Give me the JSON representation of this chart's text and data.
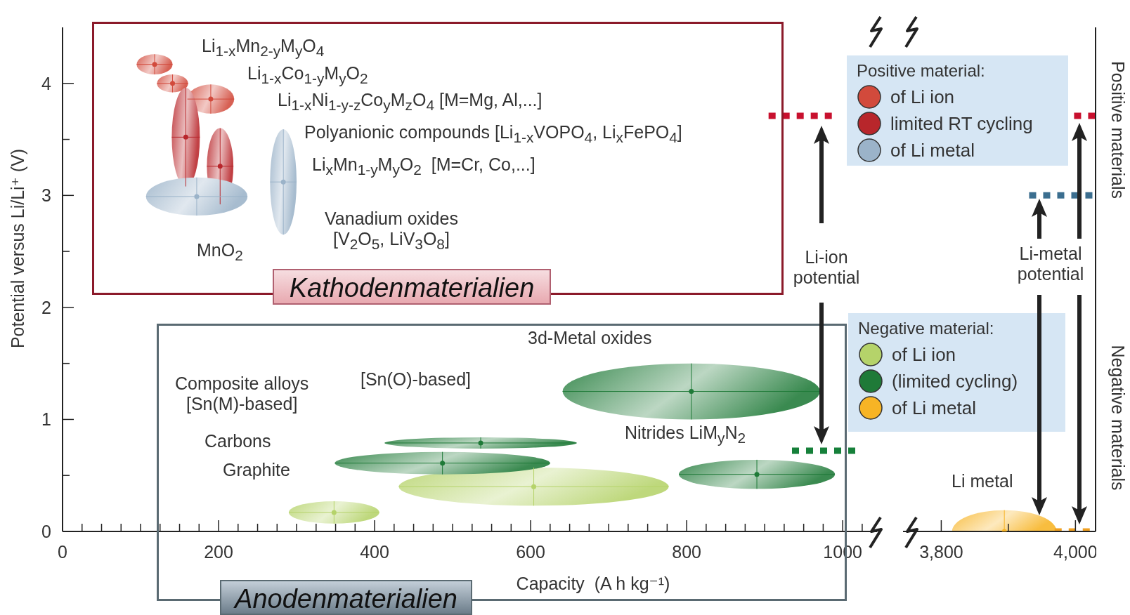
{
  "chart_data": [
    {
      "type": "scatter",
      "xlabel": "Capacity  (A h kg⁻¹)",
      "ylabel": "Potential versus Li/Li⁺ (V)",
      "xlim": [
        0,
        1044
      ],
      "ylim": [
        0,
        4.5
      ],
      "xticks": [
        0,
        {
          "value": 25,
          "label": null
        },
        {
          "value": 50,
          "label": null
        },
        {
          "value": 75,
          "label": null
        },
        {
          "value": 100,
          "label": null
        },
        {
          "value": 125,
          "label": null
        },
        {
          "value": 150,
          "label": null
        },
        {
          "value": 175,
          "label": null
        },
        200,
        {
          "value": 225,
          "label": null
        },
        {
          "value": 250,
          "label": null
        },
        {
          "value": 275,
          "label": null
        },
        {
          "value": 300,
          "label": null
        },
        {
          "value": 325,
          "label": null
        },
        {
          "value": 350,
          "label": null
        },
        {
          "value": 375,
          "label": null
        },
        400,
        {
          "value": 425,
          "label": null
        },
        {
          "value": 450,
          "label": null
        },
        {
          "value": 475,
          "label": null
        },
        {
          "value": 500,
          "label": null
        },
        {
          "value": 525,
          "label": null
        },
        {
          "value": 550,
          "label": null
        },
        {
          "value": 575,
          "label": null
        },
        600,
        {
          "value": 625,
          "label": null
        },
        {
          "value": 650,
          "label": null
        },
        {
          "value": 675,
          "label": null
        },
        {
          "value": 700,
          "label": null
        },
        {
          "value": 725,
          "label": null
        },
        {
          "value": 750,
          "label": null
        },
        {
          "value": 775,
          "label": null
        },
        800,
        {
          "value": 825,
          "label": null
        },
        {
          "value": 850,
          "label": null
        },
        {
          "value": 875,
          "label": null
        },
        {
          "value": 900,
          "label": null
        },
        {
          "value": 925,
          "label": null
        },
        {
          "value": 950,
          "label": null
        },
        {
          "value": 975,
          "label": null
        },
        1000,
        {
          "value": 1025,
          "label": null
        }
      ],
      "yticks": [
        0,
        {
          "value": 0.5,
          "label": null
        },
        1,
        {
          "value": 1.5,
          "label": null
        },
        2,
        {
          "value": 2.5,
          "label": null
        },
        3,
        {
          "value": 3.5,
          "label": null
        },
        4
      ],
      "legend": "right",
      "series": [
        {
          "name": "of Li ion",
          "color": "#d24a3c",
          "x": [
            118,
            141,
            190
          ],
          "values": [
            4.17,
            4.0,
            3.86
          ],
          "xerrors": [
            23,
            20,
            30
          ],
          "errors": [
            0.09,
            0.08,
            0.13
          ]
        },
        {
          "name": "limited RT cycling",
          "color": "#b8262b",
          "x": [
            158,
            202
          ],
          "values": [
            3.52,
            3.26
          ],
          "xerrors": [
            18,
            17
          ],
          "errors": [
            0.44,
            0.34
          ]
        },
        {
          "name": "of Li metal",
          "color": "#9bb3c9",
          "x": [
            172,
            283
          ],
          "values": [
            2.99,
            3.12
          ],
          "xerrors": [
            65,
            17
          ],
          "errors": [
            0.17,
            0.47
          ]
        },
        {
          "name": "of Li ion",
          "color": "#b5d36a",
          "x": [
            348,
            604
          ],
          "values": [
            0.17,
            0.4
          ],
          "xerrors": [
            58,
            173
          ],
          "errors": [
            0.1,
            0.17
          ]
        },
        {
          "name": "(limited cycling)",
          "color": "#1f7a38",
          "x": [
            487,
            536,
            806,
            890
          ],
          "values": [
            0.61,
            0.79,
            1.25,
            0.51
          ],
          "xerrors": [
            138,
            123,
            165,
            100
          ],
          "errors": [
            0.1,
            0.05,
            0.25,
            0.13
          ]
        },
        {
          "type": "line",
          "color": "#c8102e",
          "line_style": "dotted",
          "marker": "none",
          "x": [
            905,
            993
          ],
          "values": [
            3.71,
            3.71
          ]
        },
        {
          "type": "line",
          "color": "#16803a",
          "line_style": "dotted",
          "marker": "none",
          "x": [
            935,
            1020
          ],
          "values": [
            0.72,
            0.72
          ]
        }
      ],
      "annotations": [
        "Positive material:",
        "Negative material:",
        "Kathodenmaterialien",
        "Anodenmaterialien",
        "Li$_{1-x}$Mn$_{2-y}$M$_{y}$O$_{4}$",
        "Li$_{1-x}$Co$_{1-y}$M$_{y}$O$_{2}$",
        "Li$_{1-x}$Ni$_{1-y-z}$Co$_{y}$M$_{z}$O$_{4}$ [M=Mg, Al,...]",
        "Polyanionic compounds [Li$_{1-x}$VOPO$_{4}$, Li$_{x}$FePO$_{4}$]",
        "Li$_{x}$Mn$_{1-y}$M$_{y}$O$_{2}$  [M=Cr, Co,...]",
        "Vanadium oxides\n[V$_{2}$O$_{5}$, LiV$_{3}$O$_{8}$]",
        "MnO$_{2}$",
        "3d-Metal oxides",
        "Composite alloys\n[Sn(M)-based]",
        "[Sn(O)-based]",
        "Carbons",
        "Graphite",
        "Nitrides LiM$_{y}$N$_{2}$",
        "Li-ion\npotential"
      ]
    },
    {
      "type": "scatter",
      "xlim": [
        3743,
        4030
      ],
      "ylim": [
        0,
        4.5
      ],
      "tick_labels": "x",
      "legend": "left",
      "xticks": [
        {
          "value": 3800,
          "label": "3,800"
        },
        {
          "value": 3900,
          "label": null
        },
        {
          "value": 4000,
          "label": "4,000"
        }
      ],
      "series": [
        {
          "name": "of Li metal",
          "color": "#f7b425",
          "x": [
            3894
          ],
          "values": [
            0
          ],
          "xerrors": [
            78
          ],
          "errors": [
            [
              0,
              0.19
            ]
          ]
        },
        {
          "type": "line",
          "color": "#c8102e",
          "line_style": "dotted",
          "marker": "none",
          "x": [
            3998,
            4030
          ],
          "values": [
            3.71,
            3.71
          ]
        },
        {
          "type": "line",
          "color": "#3b6e8f",
          "line_style": "dotted",
          "marker": "none",
          "x": [
            3931,
            4030
          ],
          "values": [
            3.0,
            3.0
          ]
        },
        {
          "type": "line",
          "color": "#f0a020",
          "line_style": "dotted",
          "marker": "none",
          "x": [
            3969,
            4030
          ],
          "values": [
            0,
            0
          ]
        }
      ],
      "annotations": [
        "Positive materials",
        "Negative materials",
        "Li metal",
        "Li-metal\npotential"
      ]
    }
  ]
}
